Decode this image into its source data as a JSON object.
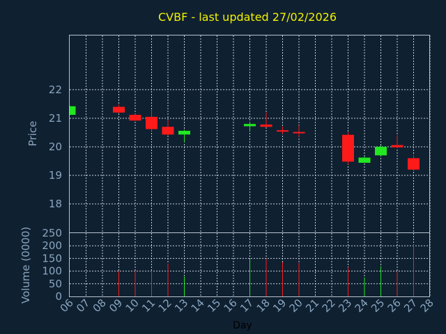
{
  "title": "CVBF - last updated 27/02/2026",
  "colors": {
    "background": "#0f2031",
    "up": "#22e822",
    "down": "#ff1a1a",
    "title": "#f2f200",
    "axis_text": "#8aa6bf",
    "grid": "#c8d2dc"
  },
  "chart_data": [
    {
      "type": "candlestick",
      "ylabel": "Price",
      "yticks": [
        18,
        19,
        20,
        21,
        22
      ],
      "ylim": [
        17.0,
        23.9
      ],
      "grid": true,
      "candles": [
        {
          "day": "06",
          "open": 21.12,
          "high": 21.45,
          "low": 21.1,
          "close": 21.42
        },
        {
          "day": "09",
          "open": 21.4,
          "high": 21.48,
          "low": 21.18,
          "close": 21.2
        },
        {
          "day": "10",
          "open": 21.12,
          "high": 21.15,
          "low": 20.9,
          "close": 20.92
        },
        {
          "day": "11",
          "open": 21.05,
          "high": 21.3,
          "low": 20.55,
          "close": 20.62
        },
        {
          "day": "12",
          "open": 20.7,
          "high": 20.95,
          "low": 20.4,
          "close": 20.43
        },
        {
          "day": "13",
          "open": 20.43,
          "high": 20.6,
          "low": 20.15,
          "close": 20.56
        },
        {
          "day": "17",
          "open": 20.72,
          "high": 20.88,
          "low": 20.55,
          "close": 20.8
        },
        {
          "day": "18",
          "open": 20.78,
          "high": 21.2,
          "low": 20.68,
          "close": 20.7
        },
        {
          "day": "19",
          "open": 20.58,
          "high": 20.7,
          "low": 20.45,
          "close": 20.54
        },
        {
          "day": "20",
          "open": 20.52,
          "high": 20.75,
          "low": 20.35,
          "close": 20.48
        },
        {
          "day": "23",
          "open": 20.42,
          "high": 20.52,
          "low": 19.38,
          "close": 19.48
        },
        {
          "day": "24",
          "open": 19.44,
          "high": 19.65,
          "low": 19.44,
          "close": 19.62
        },
        {
          "day": "25",
          "open": 19.7,
          "high": 20.05,
          "low": 19.68,
          "close": 20.0
        },
        {
          "day": "26",
          "open": 20.06,
          "high": 20.4,
          "low": 19.95,
          "close": 19.98
        },
        {
          "day": "27",
          "open": 19.6,
          "high": 19.72,
          "low": 19.15,
          "close": 19.2
        }
      ]
    },
    {
      "type": "bar",
      "ylabel": "Volume (0000)",
      "xlabel": "Day",
      "yticks": [
        0,
        50,
        100,
        150,
        200,
        250
      ],
      "ylim": [
        0,
        250
      ],
      "grid": true,
      "categories": [
        "06",
        "07",
        "08",
        "09",
        "10",
        "11",
        "12",
        "13",
        "14",
        "15",
        "16",
        "17",
        "18",
        "19",
        "20",
        "21",
        "22",
        "23",
        "24",
        "25",
        "26",
        "27",
        "28"
      ],
      "bars": [
        {
          "day": "09",
          "value": 100,
          "direction": "down"
        },
        {
          "day": "10",
          "value": 102,
          "direction": "down"
        },
        {
          "day": "11",
          "value": 102,
          "direction": "down"
        },
        {
          "day": "12",
          "value": 130,
          "direction": "down"
        },
        {
          "day": "13",
          "value": 78,
          "direction": "up"
        },
        {
          "day": "17",
          "value": 148,
          "direction": "up"
        },
        {
          "day": "18",
          "value": 148,
          "direction": "down"
        },
        {
          "day": "19",
          "value": 135,
          "direction": "down"
        },
        {
          "day": "20",
          "value": 132,
          "direction": "down"
        },
        {
          "day": "23",
          "value": 115,
          "direction": "down"
        },
        {
          "day": "24",
          "value": 75,
          "direction": "up"
        },
        {
          "day": "25",
          "value": 120,
          "direction": "up"
        },
        {
          "day": "26",
          "value": 100,
          "direction": "down"
        },
        {
          "day": "27",
          "value": 205,
          "direction": "down"
        }
      ]
    }
  ]
}
